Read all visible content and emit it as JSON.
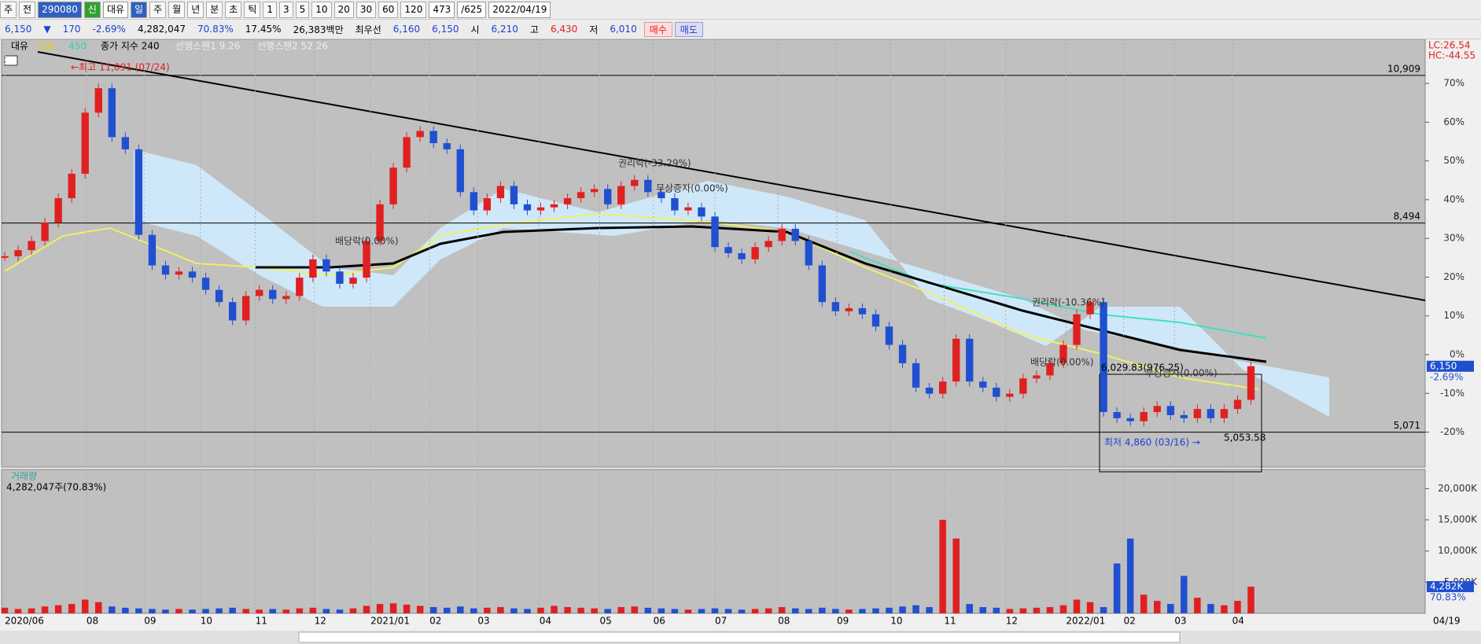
{
  "toolbar": {
    "row1": [
      "주",
      "전",
      "290080",
      "신",
      "대유",
      "일",
      "주",
      "월",
      "년",
      "분",
      "초",
      "틱",
      "1",
      "3",
      "5",
      "10",
      "20",
      "30",
      "60",
      "120",
      "473",
      "/625",
      "2022/04/19"
    ],
    "row2": [
      "6,150",
      "▼",
      "170",
      "-2.69%",
      "4,282,047",
      "70.83%",
      "17.45%",
      "26,383백만",
      "최우선",
      "6,160",
      "6,150",
      "시",
      "6,210",
      "고",
      "6,430",
      "저",
      "6,010",
      "매수",
      "매도"
    ]
  },
  "legend": [
    "대유",
    "120",
    "450",
    "종가 지수 240",
    "선행스팬1 9.26",
    "선행스팬2 52.26"
  ],
  "corner": [
    "LC:26.54",
    "HC:-44.55"
  ],
  "annotations": [
    "←최고 11,091 (07/24)",
    "권리락(-33.29%)",
    "무상증자(0.00%)",
    "배당락(0.00%)",
    "권리락(-10.36%)",
    "배당락(0.00%)",
    "6,029.83(976.25)",
    "무상증자(0.00%)",
    "최저 4,860 (03/16) →",
    "5,053.58"
  ],
  "chart_data": [
    {
      "type": "candle",
      "series": [
        {
          "name": "대유",
          "color": "#e02020",
          "values": [
            7950,
            8050,
            8200,
            8500,
            8900,
            9300,
            10300,
            10700,
            9900,
            9700,
            8300,
            7800,
            7650,
            7700,
            7600,
            7400,
            7200,
            6900,
            7300,
            7400,
            7250,
            7300,
            7600,
            7900,
            7700,
            7500,
            7600,
            8200,
            8800,
            9400,
            9900,
            10000,
            9800,
            9700,
            9000,
            8700,
            8900,
            9100,
            8800,
            8700,
            8750,
            8800,
            8900,
            9000,
            9050,
            8800,
            9100,
            9200,
            9000,
            8900,
            8700,
            8750,
            8600,
            8100,
            8000,
            7900,
            8100,
            8200,
            8400,
            8200,
            7800,
            7200,
            7050,
            7100,
            7000,
            6800,
            6500,
            6200,
            5800,
            5700,
            5900,
            6600,
            5900,
            5800,
            5650,
            5700,
            5950,
            6000,
            6200,
            6500,
            7000,
            7200,
            5400,
            5300,
            5250,
            5400,
            5500,
            5350,
            5300,
            5450,
            5300,
            5450,
            5600,
            6150
          ]
        }
      ],
      "down_color": "#2050d0",
      "xlim": [
        0,
        106
      ],
      "xticks": [
        {
          "value": 0,
          "label": "2020/06"
        },
        {
          "value": 6.1,
          "label": "08"
        },
        {
          "value": 10.4,
          "label": "09"
        },
        {
          "value": 14.6,
          "label": "10"
        },
        {
          "value": 18.7,
          "label": "11"
        },
        {
          "value": 23.1,
          "label": "12"
        },
        {
          "value": 27.3,
          "label": "2021/01"
        },
        {
          "value": 31.7,
          "label": "02"
        },
        {
          "value": 35.3,
          "label": "03"
        },
        {
          "value": 39.9,
          "label": "04"
        },
        {
          "value": 44.4,
          "label": "05"
        },
        {
          "value": 48.4,
          "label": "06"
        },
        {
          "value": 53,
          "label": "07"
        },
        {
          "value": 57.7,
          "label": "08"
        },
        {
          "value": 62.1,
          "label": "09"
        },
        {
          "value": 66.1,
          "label": "10"
        },
        {
          "value": 70.1,
          "label": "11"
        },
        {
          "value": 74.7,
          "label": "12"
        },
        {
          "value": 79.2,
          "label": "2022/01"
        },
        {
          "value": 83.5,
          "label": "02"
        },
        {
          "value": 87.3,
          "label": "03"
        },
        {
          "value": 91.6,
          "label": "04"
        }
      ],
      "last_date": "04/19",
      "ylim": [
        4500,
        11500
      ],
      "yticks": [
        {
          "value": 10778,
          "label": "70%"
        },
        {
          "value": 10144,
          "label": "60%"
        },
        {
          "value": 9510,
          "label": "50%"
        },
        {
          "value": 8876,
          "label": "40%"
        },
        {
          "value": 8242,
          "label": "30%"
        },
        {
          "value": 7608,
          "label": "20%"
        },
        {
          "value": 6974,
          "label": "10%"
        },
        {
          "value": 6340,
          "label": "0%"
        },
        {
          "value": 5706,
          "label": "-10%"
        },
        {
          "value": 5072,
          "label": "-20%"
        }
      ],
      "levels": [
        {
          "value": 10909,
          "label": "10,909"
        },
        {
          "value": 8494,
          "label": "8,494"
        },
        {
          "value": 5071,
          "label": "5,071"
        }
      ],
      "current": {
        "value": 6150,
        "label": "6,150",
        "change": "-2.69%"
      },
      "grid": true
    },
    {
      "type": "bar",
      "title": "거래량",
      "subtitle": "4,282,047주(70.83%)",
      "series": [
        {
          "name": "거래량",
          "color": "#e02020",
          "values": [
            900,
            700,
            800,
            1100,
            1300,
            1500,
            2200,
            1800,
            1100,
            900,
            800,
            700,
            600,
            700,
            600,
            700,
            800,
            900,
            700,
            600,
            700,
            600,
            800,
            900,
            700,
            600,
            800,
            1200,
            1500,
            1600,
            1400,
            1200,
            1000,
            900,
            1100,
            800,
            900,
            1000,
            800,
            700,
            900,
            1200,
            1000,
            900,
            800,
            700,
            1000,
            1100,
            900,
            800,
            700,
            600,
            700,
            800,
            700,
            600,
            700,
            800,
            1000,
            800,
            700,
            900,
            700,
            600,
            700,
            800,
            900,
            1100,
            1300,
            1000,
            15000,
            12000,
            1500,
            1000,
            900,
            700,
            800,
            900,
            1000,
            1300,
            2200,
            1800,
            1000,
            8000,
            12000,
            3000,
            2000,
            1500,
            6000,
            2500,
            1500,
            1300,
            2000,
            4282
          ]
        }
      ],
      "ylim": [
        0,
        22700
      ],
      "yticks": [
        {
          "value": 5000,
          "label": "5,000K"
        },
        {
          "value": 10000,
          "label": "10,000K"
        },
        {
          "value": 15000,
          "label": "15,000K"
        },
        {
          "value": 20000,
          "label": "20,000K"
        }
      ],
      "current": {
        "value": 4282,
        "label": "4,282K",
        "change": "70.83%"
      },
      "grid": true
    }
  ]
}
